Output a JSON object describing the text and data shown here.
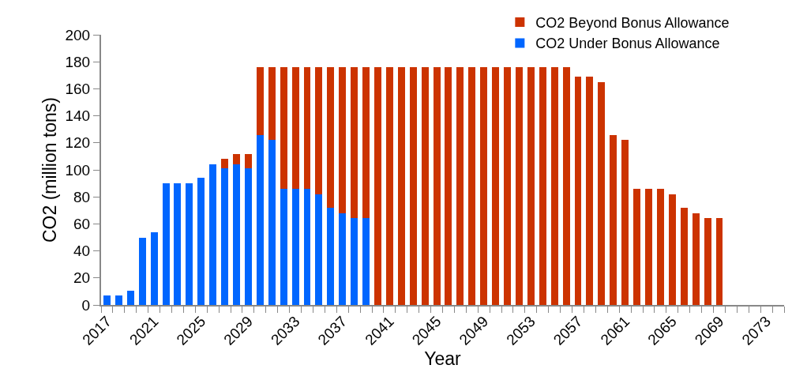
{
  "chart_data": {
    "type": "bar",
    "stacked": true,
    "xlabel": "Year",
    "ylabel": "CO2 (million tons)",
    "categories": [
      "2017",
      null,
      null,
      null,
      "2021",
      null,
      null,
      null,
      "2025",
      null,
      null,
      null,
      "2029",
      null,
      null,
      null,
      "2033",
      null,
      null,
      null,
      "2037",
      null,
      null,
      null,
      "2041",
      null,
      null,
      null,
      "2045",
      null,
      null,
      null,
      "2049",
      null,
      null,
      null,
      "2053",
      null,
      null,
      null,
      "2057",
      null,
      null,
      null,
      "2061",
      null,
      null,
      null,
      "2065",
      null,
      null,
      null,
      "2069",
      null,
      null,
      null,
      "2073",
      null
    ],
    "series": [
      {
        "name": "CO2 Under Bonus Allowance",
        "color": "#0066ff",
        "values": [
          7,
          7,
          10.5,
          50,
          54,
          90,
          90,
          90,
          94,
          104,
          101,
          104,
          101,
          126,
          122,
          86,
          86,
          86,
          82,
          72,
          68,
          64.5,
          64.5,
          null,
          null,
          null,
          null,
          null,
          null,
          null,
          null,
          null,
          null,
          null,
          null,
          null,
          null,
          null,
          null,
          null,
          null,
          null,
          null,
          null,
          null,
          null,
          null,
          null,
          null,
          null,
          null,
          null,
          null,
          null,
          null,
          null,
          null,
          null
        ]
      },
      {
        "name": "CO2 Beyond Bonus Allowance",
        "color": "#cc3300",
        "values": [
          null,
          null,
          null,
          null,
          null,
          null,
          null,
          null,
          null,
          null,
          7,
          7.5,
          10.5,
          50,
          54,
          90,
          90,
          90,
          94,
          104,
          108,
          111.5,
          111.5,
          176,
          176,
          176,
          176,
          176,
          176,
          176,
          176,
          176,
          176,
          176,
          176,
          176,
          176,
          176,
          176,
          176,
          169,
          169,
          165,
          125.5,
          122,
          86,
          86,
          86,
          82,
          72,
          68,
          64.5,
          64.5,
          null,
          null,
          null,
          null,
          null
        ]
      }
    ],
    "ylim": [
      0,
      200
    ],
    "yticks": [
      0,
      20,
      40,
      60,
      80,
      100,
      120,
      140,
      160,
      180,
      200
    ],
    "grid": false,
    "legend": "top right"
  }
}
